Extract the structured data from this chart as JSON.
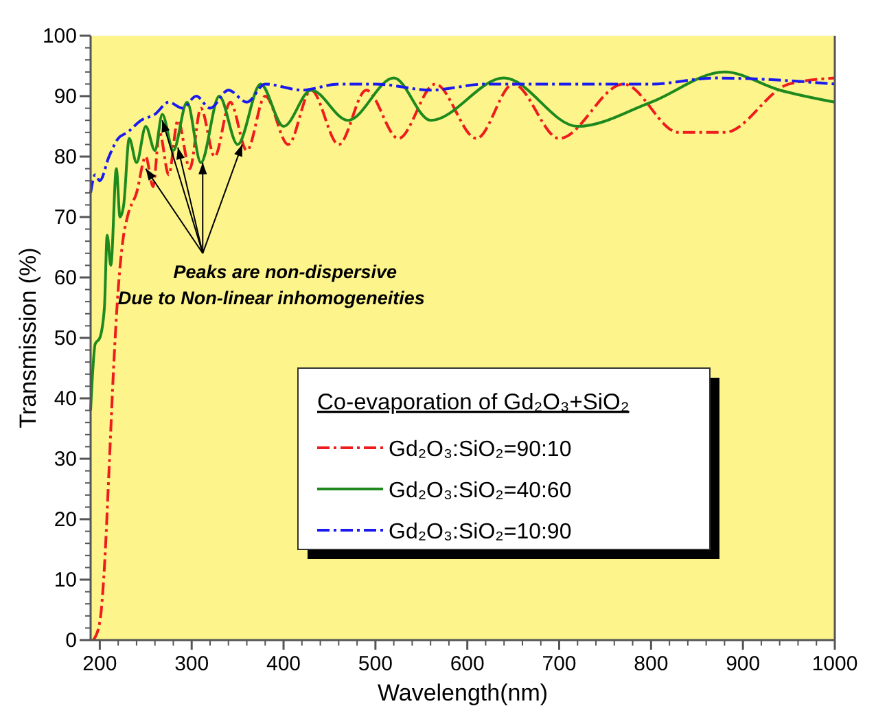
{
  "chart_data": {
    "type": "line",
    "xlabel": "Wavelength(nm)",
    "ylabel": "Transmission (%)",
    "legend_title": "Co-evaporation of Gd₂O₃+SiO₂",
    "legend": "bottom",
    "grid": false,
    "xlim": [
      190,
      1000
    ],
    "ylim": [
      0,
      100
    ],
    "xticks": [
      200,
      300,
      400,
      500,
      600,
      700,
      800,
      900,
      1000
    ],
    "yticks": [
      0,
      10,
      20,
      30,
      40,
      50,
      60,
      70,
      80,
      90,
      100
    ],
    "annotations": [
      {
        "text": "Peaks are non-dispersive",
        "x": 312,
        "y": 79
      },
      "Due to Non-linear inhomogeneities"
    ],
    "series": [
      {
        "name": "Gd₂O₃:SiO₂=90:10",
        "color": "#ee1c1c",
        "line_style": "dashed",
        "x": [
          193,
          200,
          205,
          210,
          215,
          220,
          225,
          230,
          240,
          250,
          258,
          265,
          275,
          285,
          298,
          310,
          325,
          342,
          360,
          380,
          405,
          430,
          460,
          490,
          525,
          565,
          610,
          650,
          700,
          770,
          830,
          880,
          950,
          1000
        ],
        "values": [
          0,
          3,
          12,
          28,
          45,
          58,
          66,
          70,
          74,
          80,
          75,
          84,
          77,
          86,
          78,
          88,
          80,
          89,
          81,
          90,
          82,
          91,
          82,
          91,
          83,
          92,
          83,
          92,
          83,
          92,
          84,
          84,
          92,
          93
        ]
      },
      {
        "name": "Gd₂O₃:SiO₂=40:60",
        "color": "#1e8a1e",
        "line_style": "solid",
        "x": [
          190,
          195,
          200,
          205,
          208,
          212,
          218,
          222,
          226,
          232,
          240,
          250,
          260,
          268,
          280,
          295,
          310,
          330,
          350,
          375,
          400,
          430,
          470,
          520,
          560,
          640,
          720,
          800,
          880,
          940,
          1000
        ],
        "values": [
          38,
          49,
          50,
          55,
          67,
          62,
          78,
          70,
          72,
          83,
          79,
          85,
          81,
          87,
          81,
          89,
          79,
          90,
          82,
          92,
          85,
          91,
          86,
          93,
          86,
          93,
          85,
          89,
          94,
          91,
          89
        ]
      },
      {
        "name": "Gd₂O₃:SiO₂=10:90",
        "color": "#1a1aee",
        "line_style": "dashed",
        "x": [
          190,
          195,
          200,
          210,
          220,
          230,
          245,
          260,
          275,
          290,
          305,
          320,
          340,
          360,
          380,
          420,
          460,
          500,
          560,
          620,
          700,
          800,
          870,
          1000
        ],
        "values": [
          74,
          77,
          76,
          80,
          83,
          84,
          86,
          87,
          89,
          88,
          90,
          88,
          91,
          89,
          92,
          91,
          92,
          92,
          91,
          92,
          92,
          92,
          93,
          92
        ]
      }
    ]
  }
}
